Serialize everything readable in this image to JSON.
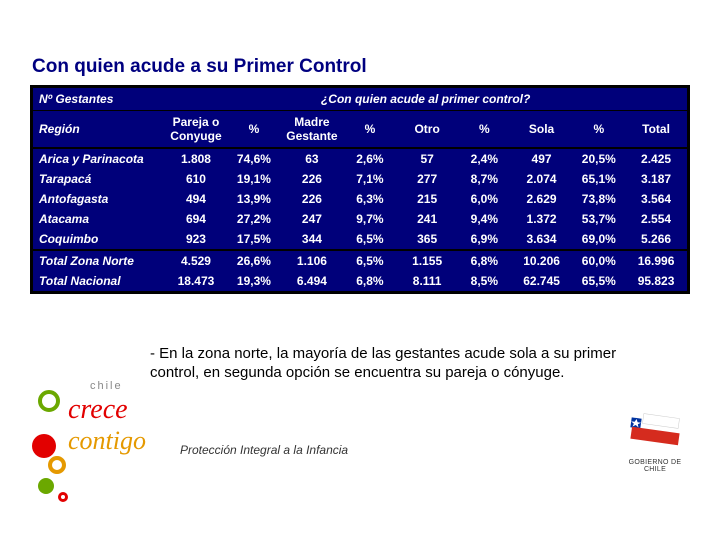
{
  "title": "Con quien acude a su Primer Control",
  "table": {
    "header_top_left": "Nº Gestantes",
    "header_top_question": "¿Con quien acude al primer control?",
    "columns": [
      "Región",
      "Pareja o Conyuge",
      "%",
      "Madre Gestante",
      "%",
      "Otro",
      "%",
      "Sola",
      "%",
      "Total"
    ],
    "rows": [
      [
        "Arica y Parinacota",
        "1.808",
        "74,6%",
        "63",
        "2,6%",
        "57",
        "2,4%",
        "497",
        "20,5%",
        "2.425"
      ],
      [
        "Tarapacá",
        "610",
        "19,1%",
        "226",
        "7,1%",
        "277",
        "8,7%",
        "2.074",
        "65,1%",
        "3.187"
      ],
      [
        "Antofagasta",
        "494",
        "13,9%",
        "226",
        "6,3%",
        "215",
        "6,0%",
        "2.629",
        "73,8%",
        "3.564"
      ],
      [
        "Atacama",
        "694",
        "27,2%",
        "247",
        "9,7%",
        "241",
        "9,4%",
        "1.372",
        "53,7%",
        "2.554"
      ],
      [
        "Coquimbo",
        "923",
        "17,5%",
        "344",
        "6,5%",
        "365",
        "6,9%",
        "3.634",
        "69,0%",
        "5.266"
      ]
    ],
    "totals": [
      [
        "Total Zona Norte",
        "4.529",
        "26,6%",
        "1.106",
        "6,5%",
        "1.155",
        "6,8%",
        "10.206",
        "60,0%",
        "16.996"
      ],
      [
        "Total Nacional",
        "18.473",
        "19,3%",
        "6.494",
        "6,8%",
        "8.111",
        "8,5%",
        "62.745",
        "65,5%",
        "95.823"
      ]
    ]
  },
  "note": "- En la zona norte, la mayoría de las gestantes acude sola a su primer control, en segunda opción se encuentra su pareja o cónyuge.",
  "footer_text": "Protección Integral a la Infancia",
  "logo_crece": {
    "sub": "chile",
    "line1": "crece",
    "line2": "contigo"
  },
  "logo_gob": {
    "caption": "GOBIERNO DE CHILE"
  },
  "colors": {
    "table_bg": "#00007a",
    "title_color": "#000080",
    "crece_red": "#e20000",
    "crece_orange": "#e59900",
    "crece_green": "#6ba800"
  }
}
